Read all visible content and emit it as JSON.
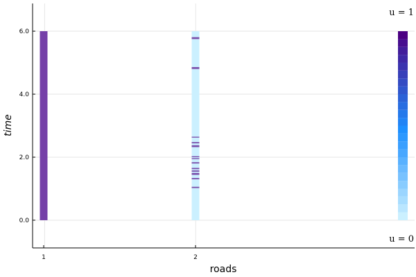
{
  "chart_data": {
    "type": "heatmap",
    "title": "",
    "xlabel": "roads",
    "ylabel": "time",
    "xlim": [
      0.92,
      3.45
    ],
    "ylim": [
      -0.88,
      6.88
    ],
    "xticks": [
      {
        "value": 1,
        "label": "1"
      },
      {
        "value": 2,
        "label": "2"
      }
    ],
    "yticks": [
      {
        "value": 0,
        "label": "0.0"
      },
      {
        "value": 2,
        "label": "2.0"
      },
      {
        "value": 4,
        "label": "4.0"
      },
      {
        "value": 6,
        "label": "6.0"
      }
    ],
    "grid": true,
    "annotations": {
      "top": "u = 1",
      "bottom": "u = 0"
    },
    "colors": {
      "low": "#cbf0ff",
      "mid": "#1e90ff",
      "high": "#4b0082",
      "road1": "#7540a8",
      "road2_base": "#cbf0ff",
      "road2_mark": "#7a4eaa"
    },
    "series": [
      {
        "road": 1,
        "segments": [
          {
            "t0": 0.0,
            "t1": 6.0,
            "u": 0.9
          }
        ]
      },
      {
        "road": 2,
        "segments": [
          {
            "t0": 0.0,
            "t1": 6.0,
            "u": 0.0
          },
          {
            "t0": 1.02,
            "t1": 1.06,
            "u": 0.8
          },
          {
            "t0": 1.3,
            "t1": 1.34,
            "u": 0.8
          },
          {
            "t0": 1.44,
            "t1": 1.5,
            "u": 0.9
          },
          {
            "t0": 1.54,
            "t1": 1.58,
            "u": 0.9
          },
          {
            "t0": 1.62,
            "t1": 1.66,
            "u": 0.8
          },
          {
            "t0": 1.8,
            "t1": 1.84,
            "u": 0.8
          },
          {
            "t0": 1.94,
            "t1": 1.97,
            "u": 0.7
          },
          {
            "t0": 2.0,
            "t1": 2.03,
            "u": 0.7
          },
          {
            "t0": 2.32,
            "t1": 2.38,
            "u": 0.9
          },
          {
            "t0": 2.44,
            "t1": 2.48,
            "u": 0.9
          },
          {
            "t0": 2.62,
            "t1": 2.65,
            "u": 0.7
          },
          {
            "t0": 4.8,
            "t1": 4.86,
            "u": 0.8
          },
          {
            "t0": 5.75,
            "t1": 5.81,
            "u": 0.9
          }
        ]
      },
      {
        "road": 3,
        "segments": [
          {
            "t0": 0.0,
            "t1": 0.25,
            "u": 0.0
          },
          {
            "t0": 0.25,
            "t1": 0.5,
            "u": 0.05
          },
          {
            "t0": 0.5,
            "t1": 0.75,
            "u": 0.1
          },
          {
            "t0": 0.75,
            "t1": 1.0,
            "u": 0.14
          },
          {
            "t0": 1.0,
            "t1": 1.25,
            "u": 0.19
          },
          {
            "t0": 1.25,
            "t1": 1.5,
            "u": 0.24
          },
          {
            "t0": 1.5,
            "t1": 1.75,
            "u": 0.28
          },
          {
            "t0": 1.75,
            "t1": 2.0,
            "u": 0.33
          },
          {
            "t0": 2.0,
            "t1": 2.25,
            "u": 0.38
          },
          {
            "t0": 2.25,
            "t1": 2.5,
            "u": 0.42
          },
          {
            "t0": 2.5,
            "t1": 2.75,
            "u": 0.46
          },
          {
            "t0": 2.75,
            "t1": 3.0,
            "u": 0.5
          },
          {
            "t0": 3.0,
            "t1": 3.25,
            "u": 0.54
          },
          {
            "t0": 3.25,
            "t1": 3.5,
            "u": 0.58
          },
          {
            "t0": 3.5,
            "t1": 3.75,
            "u": 0.62
          },
          {
            "t0": 3.75,
            "t1": 4.0,
            "u": 0.66
          },
          {
            "t0": 4.0,
            "t1": 4.25,
            "u": 0.7
          },
          {
            "t0": 4.25,
            "t1": 4.5,
            "u": 0.74
          },
          {
            "t0": 4.5,
            "t1": 4.75,
            "u": 0.78
          },
          {
            "t0": 4.75,
            "t1": 5.0,
            "u": 0.82
          },
          {
            "t0": 5.0,
            "t1": 5.25,
            "u": 0.86
          },
          {
            "t0": 5.25,
            "t1": 5.5,
            "u": 0.9
          },
          {
            "t0": 5.5,
            "t1": 5.75,
            "u": 0.95
          },
          {
            "t0": 5.75,
            "t1": 6.0,
            "u": 1.0
          }
        ]
      }
    ]
  }
}
